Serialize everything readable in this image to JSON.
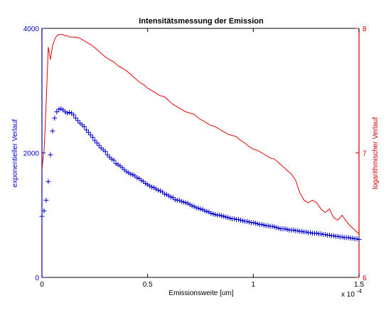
{
  "colors": {
    "left_axis": "#0000cc",
    "right_axis": "#cc0000",
    "scatter": "#0000cc",
    "line": "#e60000",
    "frame": "#000000"
  },
  "chart_data": {
    "type": "line",
    "title": "Intensitätsmessung der Emission",
    "xlabel": "Emissionsweite [um]",
    "x_scale_label": "x 10",
    "x_scale_exponent": "-4",
    "ylabel_left": "exponentieller Verlauf",
    "ylabel_right": "logarithmischer Verlauf",
    "xlim": [
      0,
      1.5
    ],
    "ylim_left": [
      0,
      4000
    ],
    "ylim_right": [
      6,
      8
    ],
    "x_ticks": [
      {
        "value": 0,
        "label": "0"
      },
      {
        "value": 0.5,
        "label": "0.5"
      },
      {
        "value": 1,
        "label": "1"
      },
      {
        "value": 1.5,
        "label": "1.5"
      }
    ],
    "y_left_ticks": [
      {
        "value": 0,
        "label": "0"
      },
      {
        "value": 2000,
        "label": "2000"
      },
      {
        "value": 4000,
        "label": "4000"
      }
    ],
    "y_right_ticks": [
      {
        "value": 6,
        "label": "6"
      },
      {
        "value": 7,
        "label": "7"
      },
      {
        "value": 8,
        "label": "8"
      }
    ],
    "grid": false,
    "series": [
      {
        "type": "scatter",
        "axis": "left",
        "marker": "+",
        "x": [
          0.0,
          0.01,
          0.02,
          0.03,
          0.04,
          0.05,
          0.06,
          0.07,
          0.08,
          0.09,
          0.1,
          0.11,
          0.12,
          0.13,
          0.14,
          0.15,
          0.16,
          0.17,
          0.18,
          0.19,
          0.2,
          0.21,
          0.22,
          0.23,
          0.24,
          0.25,
          0.26,
          0.27,
          0.28,
          0.29,
          0.3,
          0.31,
          0.32,
          0.33,
          0.34,
          0.35,
          0.36,
          0.37,
          0.38,
          0.39,
          0.4,
          0.41,
          0.42,
          0.43,
          0.44,
          0.45,
          0.46,
          0.47,
          0.48,
          0.49,
          0.5,
          0.51,
          0.52,
          0.53,
          0.54,
          0.55,
          0.56,
          0.57,
          0.58,
          0.59,
          0.6,
          0.61,
          0.62,
          0.63,
          0.64,
          0.65,
          0.66,
          0.67,
          0.68,
          0.69,
          0.7,
          0.71,
          0.72,
          0.73,
          0.74,
          0.75,
          0.76,
          0.77,
          0.78,
          0.79,
          0.8,
          0.81,
          0.82,
          0.83,
          0.84,
          0.85,
          0.86,
          0.87,
          0.88,
          0.89,
          0.9,
          0.91,
          0.92,
          0.93,
          0.94,
          0.95,
          0.96,
          0.97,
          0.98,
          0.99,
          1.0,
          1.01,
          1.02,
          1.03,
          1.04,
          1.05,
          1.06,
          1.07,
          1.08,
          1.09,
          1.1,
          1.11,
          1.12,
          1.13,
          1.14,
          1.15,
          1.16,
          1.17,
          1.18,
          1.19,
          1.2,
          1.21,
          1.22,
          1.23,
          1.24,
          1.25,
          1.26,
          1.27,
          1.28,
          1.29,
          1.3,
          1.31,
          1.32,
          1.33,
          1.34,
          1.35,
          1.36,
          1.37,
          1.38,
          1.39,
          1.4,
          1.41,
          1.42,
          1.43,
          1.44,
          1.45,
          1.46,
          1.47,
          1.48,
          1.49,
          1.5
        ],
        "y": [
          980,
          1070,
          1240,
          1540,
          1970,
          2350,
          2560,
          2660,
          2700,
          2710,
          2690,
          2660,
          2640,
          2650,
          2640,
          2610,
          2560,
          2520,
          2480,
          2450,
          2420,
          2370,
          2330,
          2290,
          2250,
          2200,
          2160,
          2120,
          2080,
          2050,
          2020,
          1970,
          1930,
          1900,
          1880,
          1830,
          1810,
          1790,
          1760,
          1730,
          1700,
          1680,
          1660,
          1650,
          1630,
          1600,
          1590,
          1560,
          1540,
          1510,
          1490,
          1470,
          1450,
          1440,
          1420,
          1400,
          1390,
          1370,
          1340,
          1330,
          1310,
          1290,
          1280,
          1250,
          1240,
          1240,
          1220,
          1210,
          1200,
          1190,
          1170,
          1150,
          1140,
          1120,
          1110,
          1100,
          1090,
          1070,
          1060,
          1050,
          1030,
          1020,
          1010,
          1000,
          1000,
          990,
          980,
          970,
          960,
          950,
          940,
          940,
          930,
          930,
          920,
          910,
          900,
          900,
          890,
          880,
          880,
          870,
          860,
          850,
          850,
          840,
          830,
          830,
          820,
          820,
          810,
          800,
          790,
          780,
          780,
          780,
          770,
          760,
          760,
          760,
          750,
          750,
          740,
          740,
          730,
          730,
          720,
          720,
          710,
          710,
          710,
          700,
          700,
          690,
          690,
          680,
          680,
          670,
          670,
          660,
          660,
          650,
          650,
          640,
          640,
          640,
          630,
          630,
          620,
          620,
          610
        ]
      },
      {
        "type": "line",
        "axis": "right",
        "x": [
          0.0,
          0.005,
          0.01,
          0.015,
          0.02,
          0.025,
          0.03,
          0.04,
          0.05,
          0.06,
          0.07,
          0.08,
          0.09,
          0.1,
          0.11,
          0.12,
          0.13,
          0.14,
          0.15,
          0.16,
          0.18,
          0.2,
          0.22,
          0.24,
          0.26,
          0.28,
          0.3,
          0.32,
          0.34,
          0.36,
          0.38,
          0.4,
          0.42,
          0.44,
          0.46,
          0.48,
          0.5,
          0.52,
          0.54,
          0.56,
          0.58,
          0.6,
          0.62,
          0.64,
          0.66,
          0.68,
          0.7,
          0.72,
          0.74,
          0.76,
          0.78,
          0.8,
          0.82,
          0.84,
          0.86,
          0.88,
          0.9,
          0.92,
          0.94,
          0.96,
          0.98,
          1.0,
          1.02,
          1.04,
          1.06,
          1.08,
          1.1,
          1.12,
          1.14,
          1.16,
          1.18,
          1.2,
          1.22,
          1.24,
          1.26,
          1.28,
          1.3,
          1.32,
          1.34,
          1.36,
          1.38,
          1.4,
          1.42,
          1.44,
          1.46,
          1.48,
          1.5
        ],
        "y": [
          6.87,
          6.95,
          7.02,
          7.2,
          7.4,
          7.62,
          7.85,
          7.75,
          7.86,
          7.91,
          7.94,
          7.95,
          7.95,
          7.95,
          7.94,
          7.94,
          7.93,
          7.93,
          7.93,
          7.93,
          7.92,
          7.9,
          7.88,
          7.86,
          7.83,
          7.8,
          7.77,
          7.75,
          7.73,
          7.7,
          7.68,
          7.66,
          7.63,
          7.6,
          7.57,
          7.55,
          7.52,
          7.5,
          7.48,
          7.46,
          7.45,
          7.42,
          7.39,
          7.37,
          7.35,
          7.33,
          7.32,
          7.31,
          7.28,
          7.26,
          7.24,
          7.22,
          7.21,
          7.19,
          7.17,
          7.15,
          7.14,
          7.13,
          7.1,
          7.08,
          7.05,
          7.03,
          7.02,
          7.0,
          6.98,
          6.96,
          6.95,
          6.92,
          6.89,
          6.86,
          6.83,
          6.78,
          6.68,
          6.62,
          6.6,
          6.62,
          6.6,
          6.55,
          6.52,
          6.55,
          6.48,
          6.46,
          6.5,
          6.45,
          6.41,
          6.38,
          6.35
        ]
      }
    ]
  }
}
